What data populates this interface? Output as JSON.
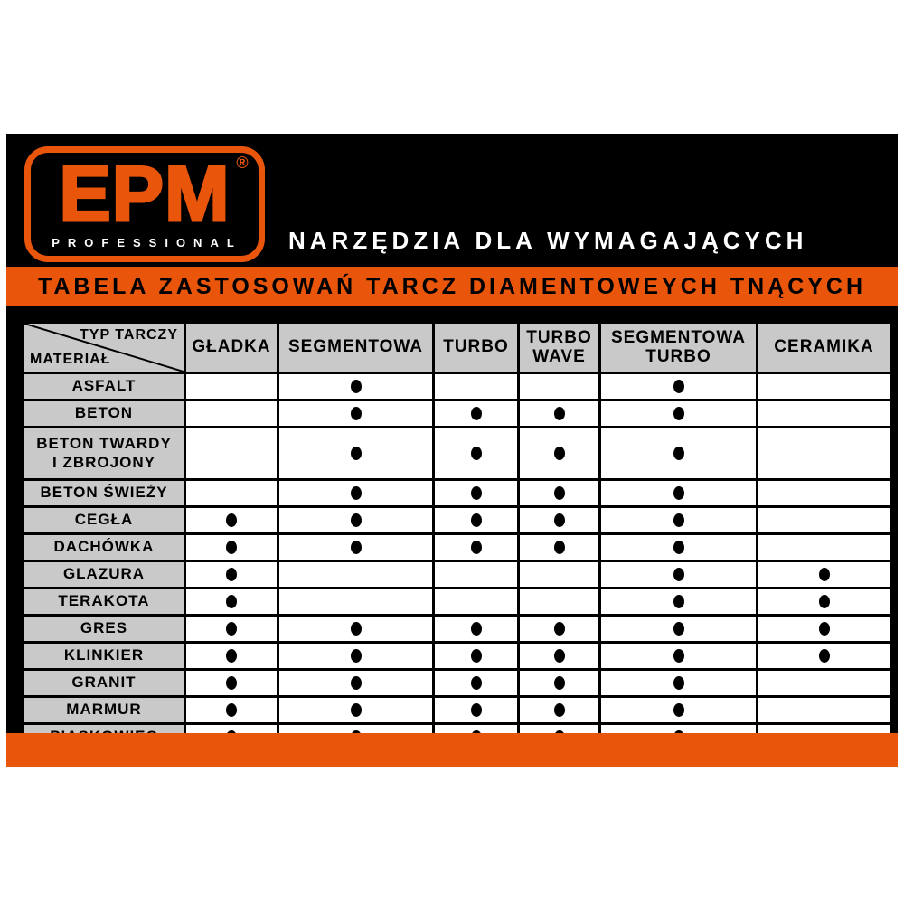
{
  "logo": {
    "text": "EPM",
    "registered": "®",
    "subtext": "PROFESSIONAL"
  },
  "tagline": "NARZĘDZIA DLA WYMAGAJĄCYCH",
  "banner": "TABELA ZASTOSOWAŃ TARCZ DIAMENTOWEYCH TNĄCYCH",
  "colors": {
    "orange": "#E9560B",
    "header_gray": "#C9C9C9",
    "card_black": "#000000",
    "cell_white": "#FFFFFF",
    "dot_black": "#000000"
  },
  "table": {
    "corner_top": "TYP TARCZY",
    "corner_bottom": "MATERIAŁ",
    "columns": [
      "GŁADKA",
      "SEGMENTOWA",
      "TURBO",
      "TURBO\nWAVE",
      "SEGMENTOWA\nTURBO",
      "CERAMIKA"
    ],
    "rows": [
      {
        "material": "ASFALT",
        "marks": [
          false,
          true,
          false,
          false,
          true,
          false
        ]
      },
      {
        "material": "BETON",
        "marks": [
          false,
          true,
          true,
          true,
          true,
          false
        ]
      },
      {
        "material": "BETON TWARDY\nI ZBROJONY",
        "marks": [
          false,
          true,
          true,
          true,
          true,
          false
        ]
      },
      {
        "material": "BETON ŚWIEŻY",
        "marks": [
          false,
          true,
          true,
          true,
          true,
          false
        ]
      },
      {
        "material": "CEGŁA",
        "marks": [
          true,
          true,
          true,
          true,
          true,
          false
        ]
      },
      {
        "material": "DACHÓWKA",
        "marks": [
          true,
          true,
          true,
          true,
          true,
          false
        ]
      },
      {
        "material": "GLAZURA",
        "marks": [
          true,
          false,
          false,
          false,
          true,
          true
        ]
      },
      {
        "material": "TERAKOTA",
        "marks": [
          true,
          false,
          false,
          false,
          true,
          true
        ]
      },
      {
        "material": "GRES",
        "marks": [
          true,
          true,
          true,
          true,
          true,
          true
        ]
      },
      {
        "material": "KLINKIER",
        "marks": [
          true,
          true,
          true,
          true,
          true,
          true
        ]
      },
      {
        "material": "GRANIT",
        "marks": [
          true,
          true,
          true,
          true,
          true,
          false
        ]
      },
      {
        "material": "MARMUR",
        "marks": [
          true,
          true,
          true,
          true,
          true,
          false
        ]
      },
      {
        "material": "PIASKOWIEC",
        "marks": [
          true,
          true,
          true,
          true,
          true,
          false
        ]
      }
    ]
  }
}
